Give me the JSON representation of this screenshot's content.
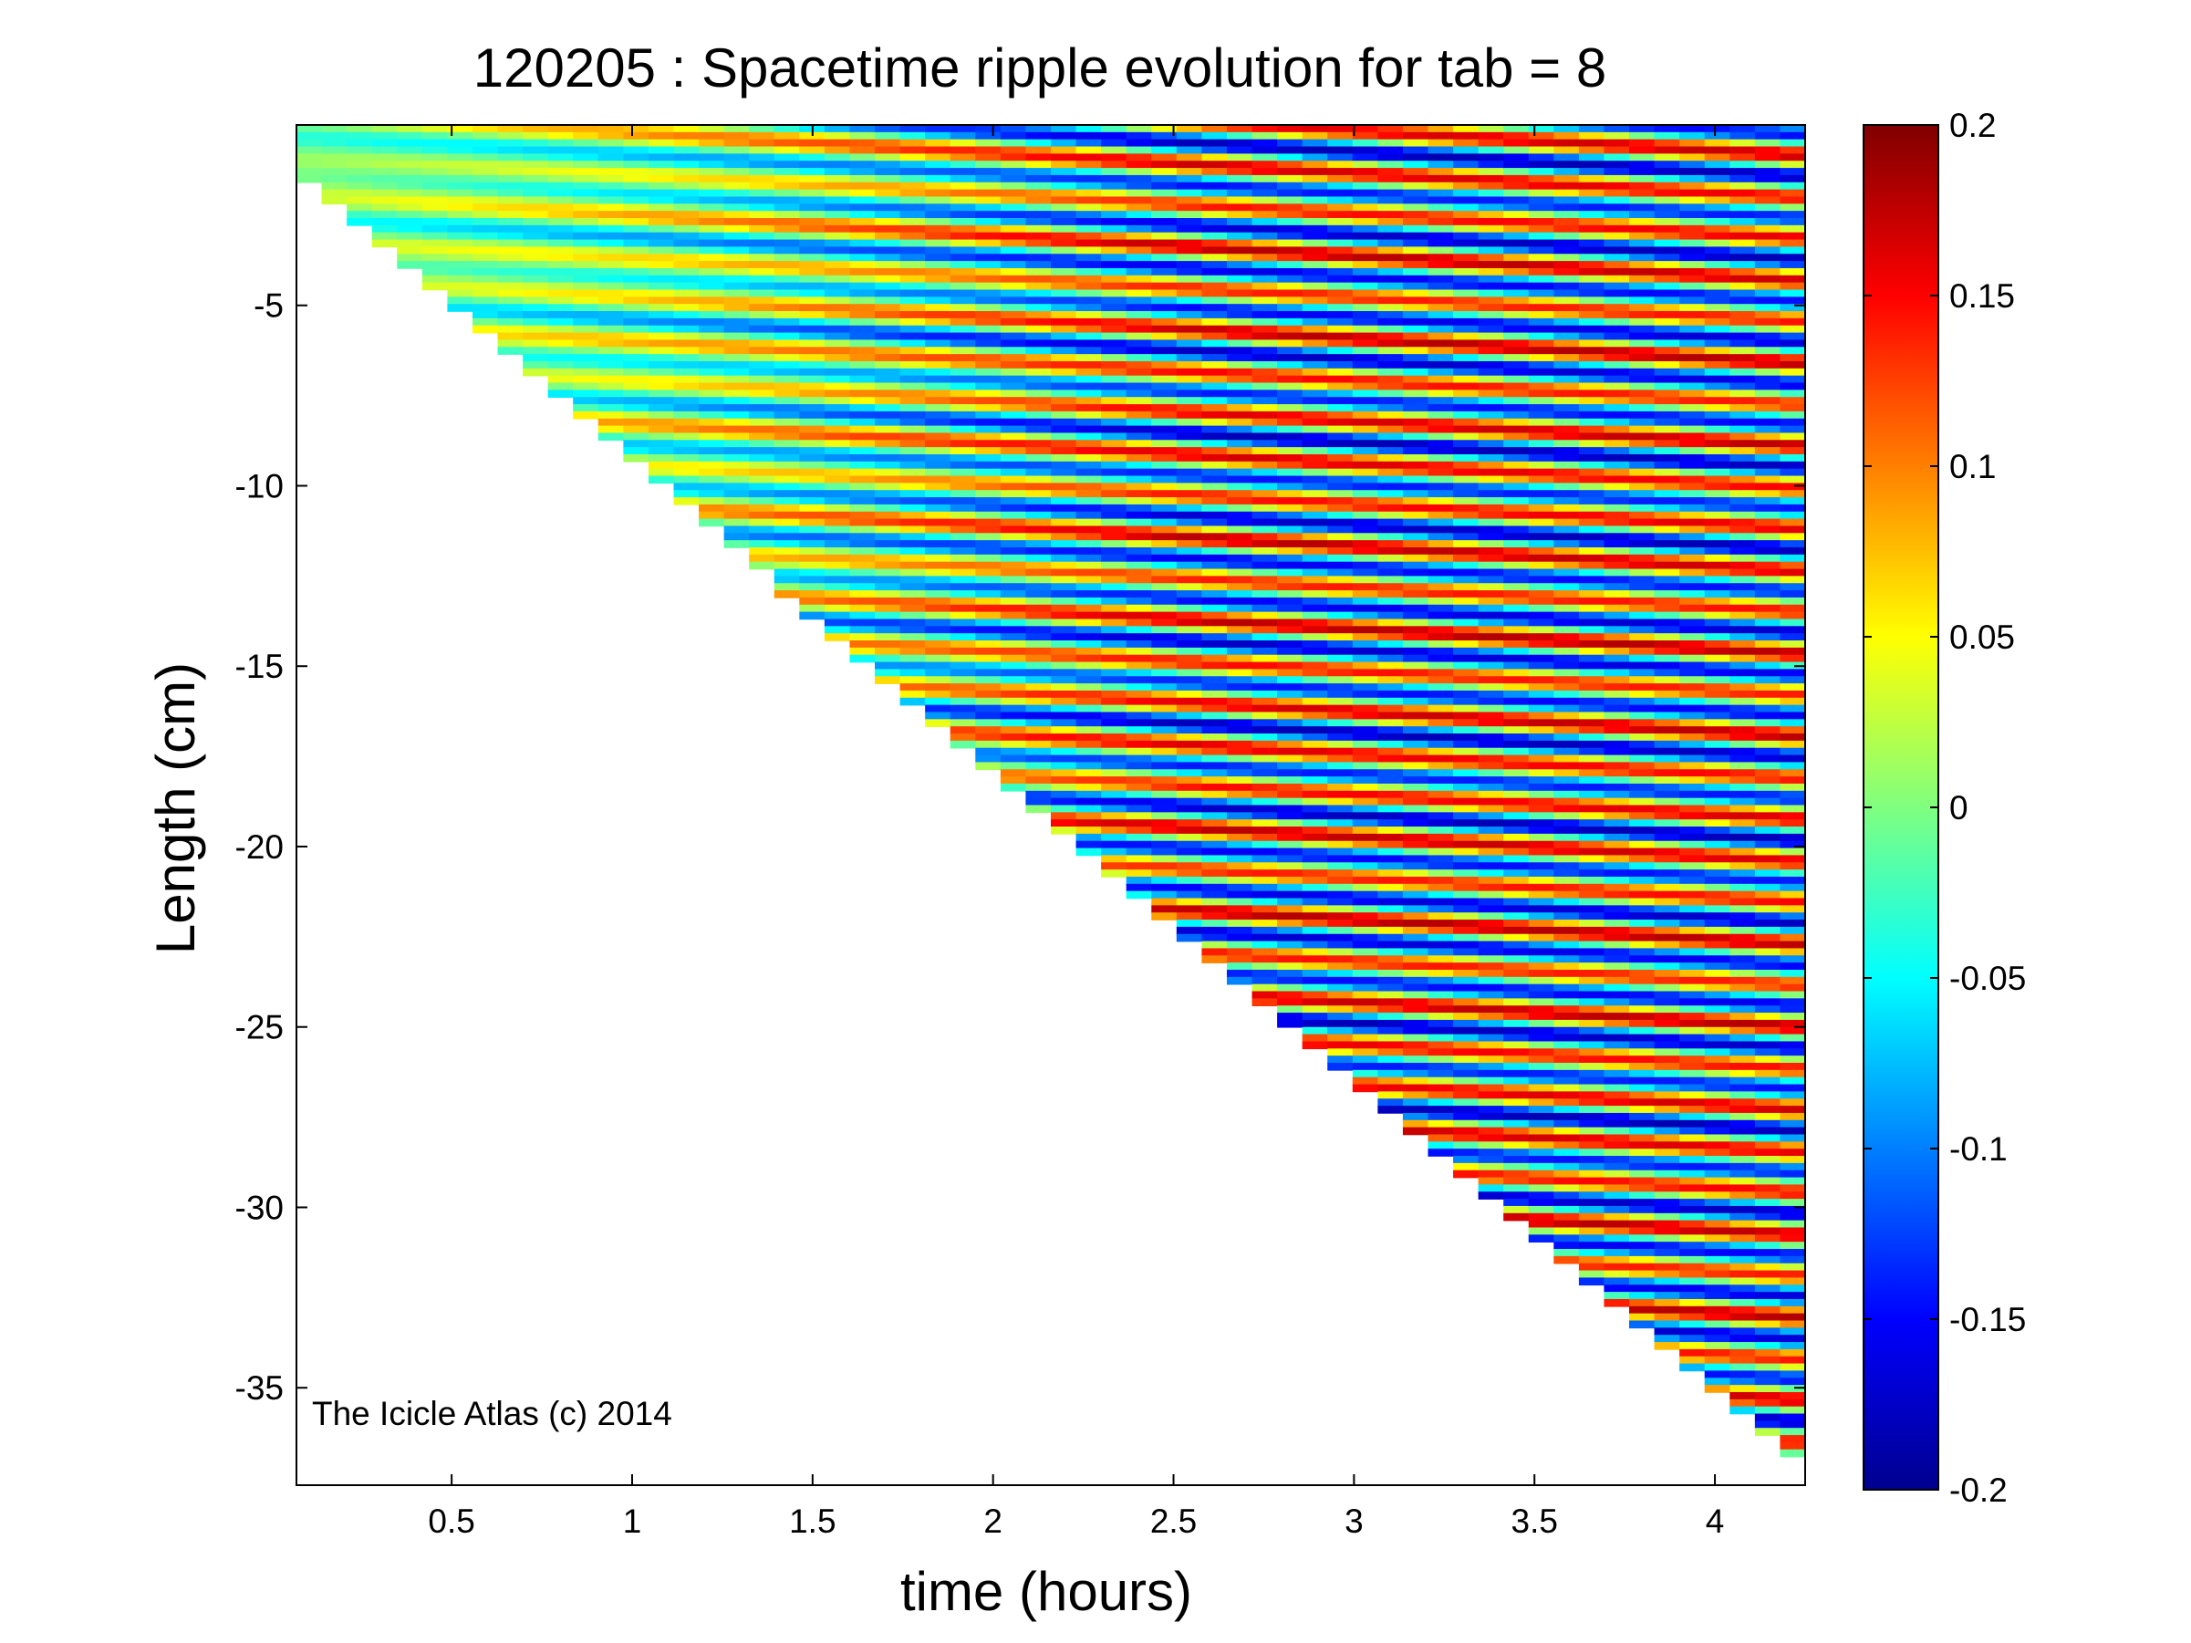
{
  "chart_data": {
    "type": "heatmap",
    "title": "120205 : Spacetime ripple evolution for tab = 8",
    "xlabel": "time (hours)",
    "ylabel": "Length (cm)",
    "xlim": [
      0.07,
      4.25
    ],
    "ylim": [
      -37.7,
      0
    ],
    "x_ticks": [
      0.5,
      1,
      1.5,
      2,
      2.5,
      3,
      3.5,
      4
    ],
    "x_tick_labels": [
      "0.5",
      "1",
      "1.5",
      "2",
      "2.5",
      "3",
      "3.5",
      "4"
    ],
    "y_ticks": [
      -5,
      -10,
      -15,
      -20,
      -25,
      -30,
      -35
    ],
    "y_tick_labels": [
      "-5",
      "-10",
      "-15",
      "-20",
      "-25",
      "-30",
      "-35"
    ],
    "growth_front": {
      "description_points": [
        [
          0.07,
          -1.0
        ],
        [
          4.25,
          -37.0
        ]
      ]
    },
    "colorbar": {
      "colormap": "jet",
      "range": [
        -0.2,
        0.2
      ],
      "ticks": [
        0.2,
        0.15,
        0.1,
        0.05,
        0,
        -0.05,
        -0.1,
        -0.15,
        -0.2
      ],
      "tick_labels": [
        "0.2",
        "0.15",
        "0.1",
        "0.05",
        "0",
        "-0.05",
        "-0.1",
        "-0.15",
        "-0.2"
      ]
    },
    "annotation": "The Icicle Atlas (c) 2014"
  }
}
